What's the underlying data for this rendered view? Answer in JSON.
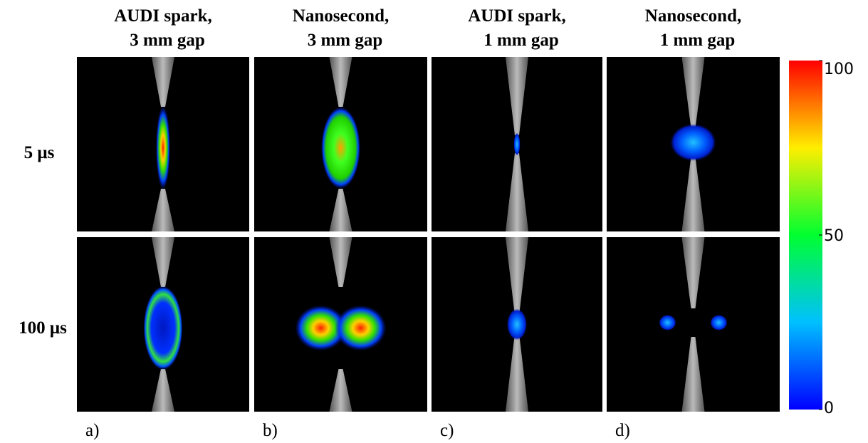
{
  "columns": [
    {
      "line1": "AUDI spark,",
      "line2": "3 mm gap"
    },
    {
      "line1": "Nanosecond,",
      "line2": "3 mm gap"
    },
    {
      "line1": "AUDI spark,",
      "line2": "1 mm gap"
    },
    {
      "line1": "Nanosecond,",
      "line2": "1 mm gap"
    }
  ],
  "rows": [
    "5 μs",
    "100 μs"
  ],
  "panel_labels": [
    "a)",
    "b)",
    "c)",
    "d)"
  ],
  "colorbar": {
    "ticks": [
      0,
      50,
      100
    ]
  }
}
